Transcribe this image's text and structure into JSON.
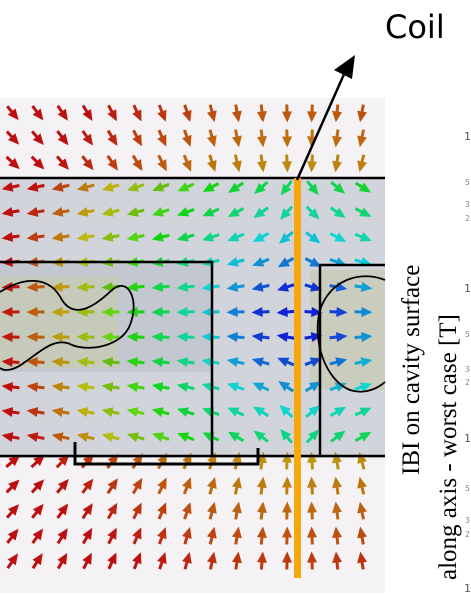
{
  "coil_label": "Coil",
  "ylabel_line1": "IBI on cavity surface",
  "ylabel_line2": "along axis - worst case [T]",
  "edge_ticks": [
    "1",
    "5",
    "3",
    "2",
    "1",
    "5",
    "3",
    "2",
    "1",
    "5",
    "3",
    "2",
    "1"
  ],
  "colors": {
    "arrow_far": "#cc1111",
    "coil": "#f7a80b",
    "outline": "#000000",
    "arrow_near": "#1133ee",
    "background": "#f7f5f8",
    "cavity_fill": "#c4c8d0"
  }
}
